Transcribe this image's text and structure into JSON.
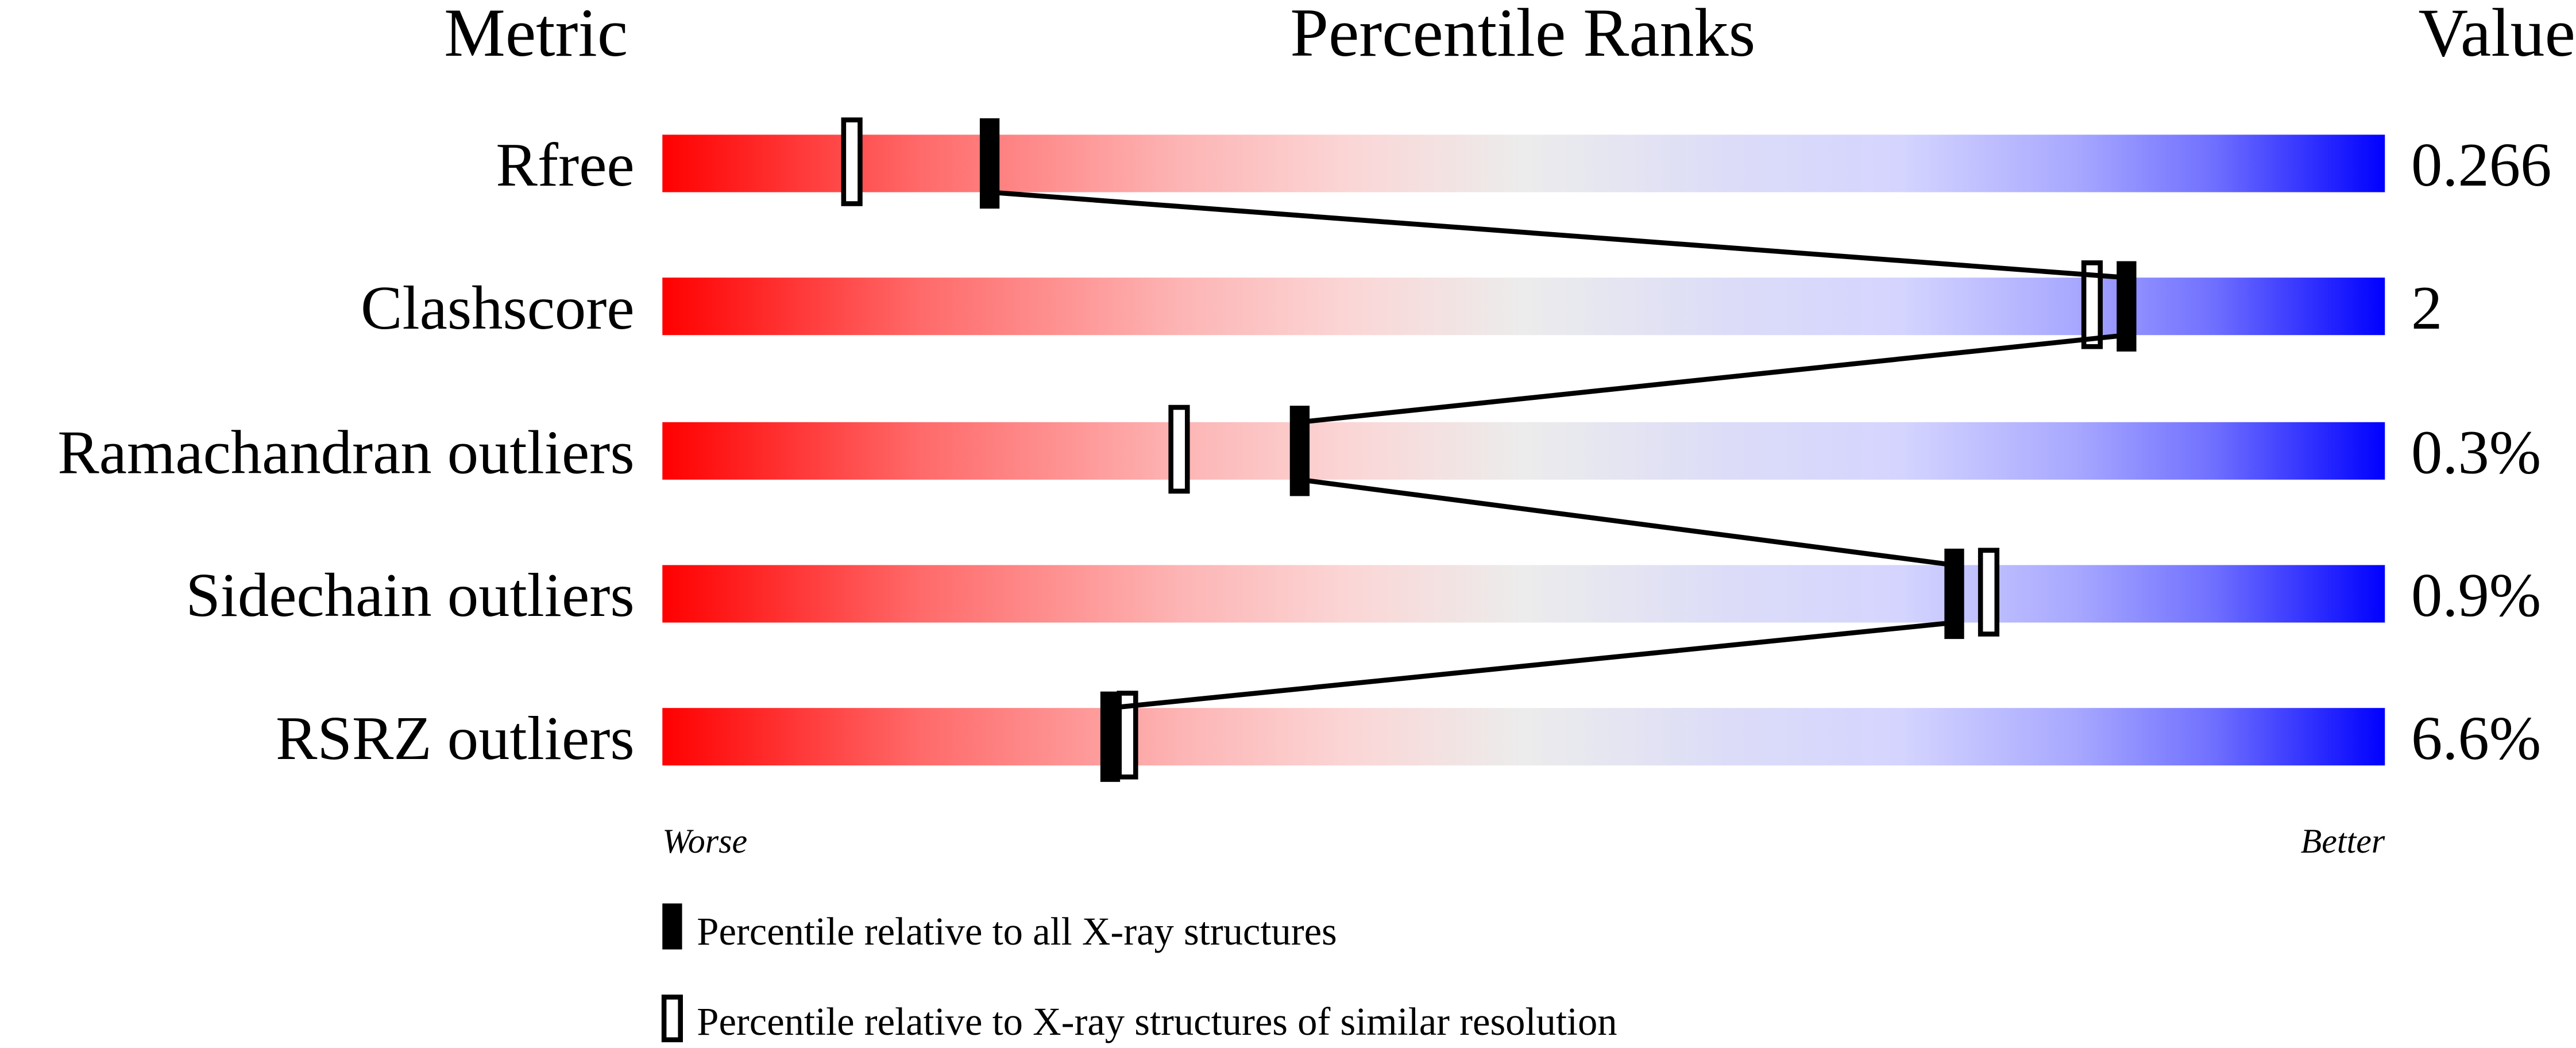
{
  "chart_data": {
    "type": "bar",
    "headers": {
      "metric": "Metric",
      "ranks": "Percentile Ranks",
      "value": "Value"
    },
    "xlim": [
      0,
      100
    ],
    "axis_labels": {
      "left": "Worse",
      "right": "Better"
    },
    "metrics": [
      {
        "name": "Rfree",
        "value": "0.266",
        "percentile_all": 19,
        "percentile_similar": 11
      },
      {
        "name": "Clashscore",
        "value": "2",
        "percentile_all": 85,
        "percentile_similar": 83
      },
      {
        "name": "Ramachandran outliers",
        "value": "0.3%",
        "percentile_all": 37,
        "percentile_similar": 30
      },
      {
        "name": "Sidechain outliers",
        "value": "0.9%",
        "percentile_all": 75,
        "percentile_similar": 77
      },
      {
        "name": "RSRZ outliers",
        "value": "6.6%",
        "percentile_all": 26,
        "percentile_similar": 27
      }
    ],
    "legend": [
      {
        "marker": "filled",
        "label": "Percentile relative to all X-ray structures"
      },
      {
        "marker": "open",
        "label": "Percentile relative to X-ray structures of similar resolution"
      }
    ],
    "colors": {
      "worse": "#ff0000",
      "middle": "#eeeeee",
      "better": "#0000ff",
      "marker": "#000000"
    }
  }
}
